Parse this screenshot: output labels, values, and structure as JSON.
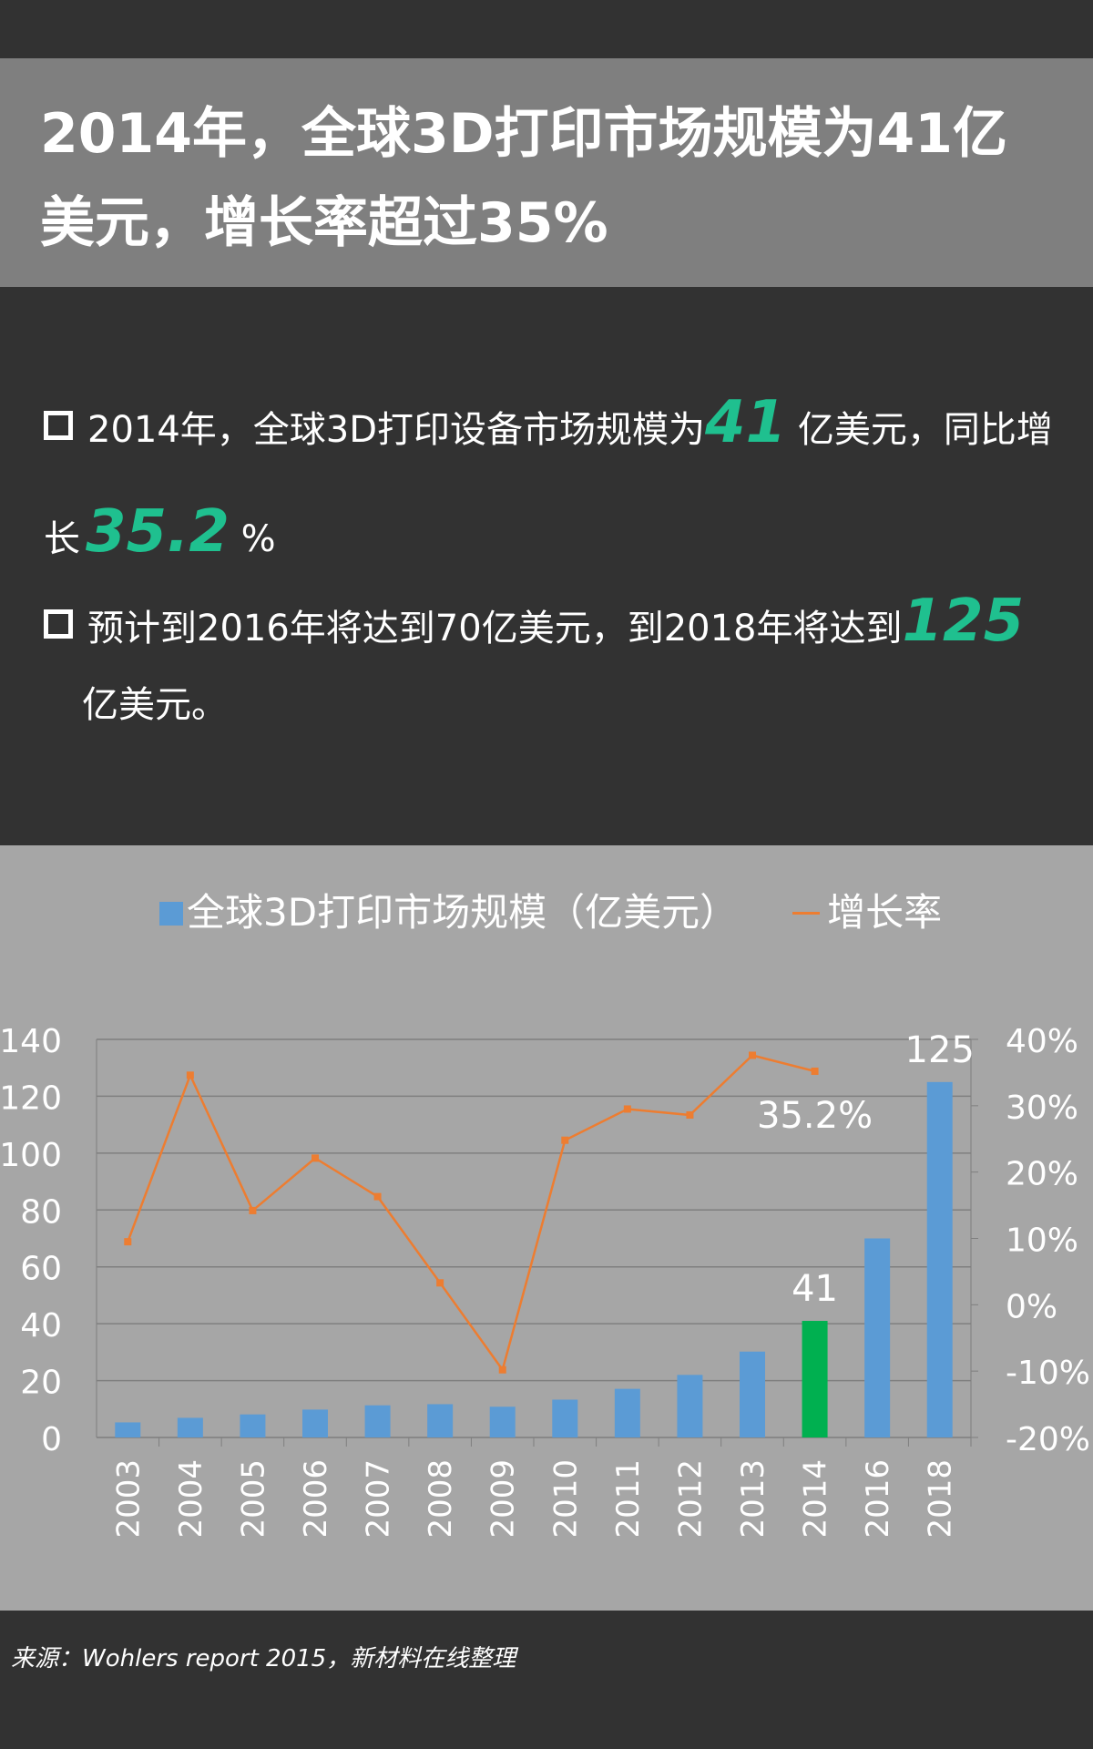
{
  "title": "2014年，全球3D打印市场规模为41亿美元，增长率超过35%",
  "bullets": [
    {
      "pre": "2014年，全球3D打印设备市场规模为",
      "num": "41",
      "post": " 亿美元，同比增长",
      "num2": "35.2",
      "post2": " %"
    },
    {
      "pre": "预计到2016年将达到70亿美元，到2018年将达到",
      "num": "125",
      "post": "亿美元。"
    }
  ],
  "footer": "来源：Wohlers report  2015，新材料在线整理",
  "chart_data": {
    "type": "bar+line",
    "categories": [
      "2003",
      "2004",
      "2005",
      "2006",
      "2007",
      "2008",
      "2009",
      "2010",
      "2011",
      "2012",
      "2013",
      "2014",
      "2016",
      "2018"
    ],
    "series": [
      {
        "name": "全球3D打印市场规模（亿美元）",
        "type": "bar",
        "axis": "left",
        "color": "#5b9bd5",
        "highlight": {
          "2014": "#00b050"
        },
        "values": [
          5.3,
          6.9,
          8.1,
          9.8,
          11.3,
          11.7,
          10.8,
          13.3,
          17.1,
          22,
          30.2,
          41,
          70,
          125
        ]
      },
      {
        "name": "增长率",
        "type": "line",
        "axis": "right",
        "color": "#ed7d31",
        "values": [
          9.5,
          34.6,
          14.2,
          22.1,
          16.3,
          3.3,
          -9.8,
          24.8,
          29.5,
          28.6,
          37.6,
          35.2,
          null,
          null
        ]
      }
    ],
    "data_labels": [
      {
        "category": "2014",
        "text": "41"
      },
      {
        "category": "2018",
        "text": "125"
      },
      {
        "category": "2014",
        "text": "35.2%"
      }
    ],
    "y_left": {
      "range": [
        0,
        140
      ],
      "ticks": [
        "0",
        "20",
        "40",
        "60",
        "80",
        "100",
        "120",
        "140"
      ]
    },
    "y_right": {
      "range": [
        -20,
        40
      ],
      "ticks": [
        "-20%",
        "-10%",
        "0%",
        "10%",
        "20%",
        "30%",
        "40%"
      ]
    },
    "grid": true,
    "legend": "top"
  }
}
